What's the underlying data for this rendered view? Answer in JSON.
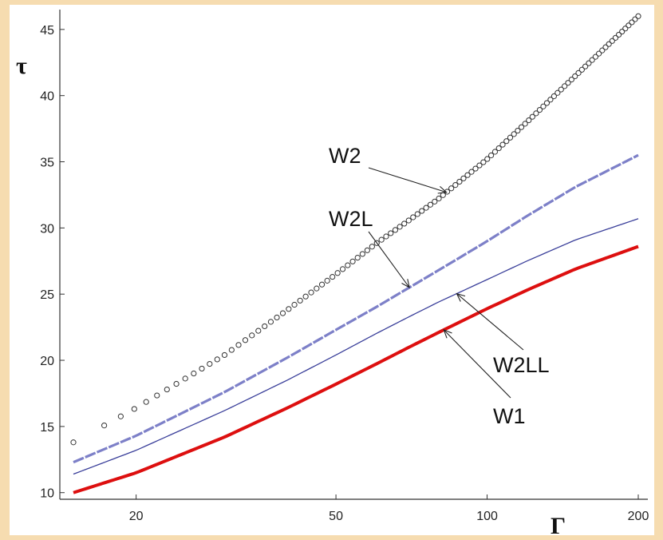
{
  "chart_data": {
    "type": "line",
    "title": "",
    "xlabel": "Γ",
    "ylabel": "τ",
    "xscale": "log",
    "xlim": [
      15,
      200
    ],
    "ylim": [
      9.5,
      46.5
    ],
    "xticks": [
      20,
      50,
      100,
      200
    ],
    "yticks": [
      10,
      15,
      20,
      25,
      30,
      35,
      40,
      45
    ],
    "grid": false,
    "colors": {
      "W1": "#dd0f0f",
      "W2LL": "#3a3f9a",
      "W2L": "#7d80c8",
      "W2": "#333333"
    },
    "series": [
      {
        "name": "W2",
        "style": "circles",
        "x": [
          15,
          20,
          30,
          40,
          50,
          60,
          70,
          80,
          100,
          120,
          150,
          200
        ],
        "values": [
          13.8,
          16.4,
          20.4,
          23.8,
          26.5,
          28.8,
          30.6,
          32.2,
          35.2,
          38.0,
          41.5,
          46.0
        ]
      },
      {
        "name": "W2L",
        "style": "dashed",
        "x": [
          15,
          20,
          30,
          40,
          50,
          60,
          70,
          80,
          100,
          120,
          150,
          200
        ],
        "values": [
          12.3,
          14.3,
          17.6,
          20.2,
          22.3,
          24.0,
          25.5,
          26.8,
          29.0,
          30.9,
          33.1,
          35.5
        ]
      },
      {
        "name": "W2LL",
        "style": "thin",
        "x": [
          15,
          20,
          30,
          40,
          50,
          60,
          70,
          80,
          100,
          120,
          150,
          200
        ],
        "values": [
          11.4,
          13.2,
          16.2,
          18.5,
          20.4,
          22.0,
          23.3,
          24.4,
          26.1,
          27.5,
          29.1,
          30.7
        ]
      },
      {
        "name": "W1",
        "style": "thick",
        "x": [
          15,
          20,
          30,
          40,
          50,
          60,
          70,
          80,
          100,
          120,
          150,
          200
        ],
        "values": [
          10.0,
          11.5,
          14.2,
          16.4,
          18.2,
          19.7,
          21.0,
          22.1,
          23.9,
          25.3,
          26.9,
          28.6
        ]
      }
    ],
    "annotations": [
      {
        "text": "W2",
        "series": "W2",
        "target_x": 83
      },
      {
        "text": "W2L",
        "series": "W2L",
        "target_x": 70
      },
      {
        "text": "W2LL",
        "series": "W2LL",
        "target_x": 87
      },
      {
        "text": "W1",
        "series": "W1",
        "target_x": 82
      }
    ]
  }
}
